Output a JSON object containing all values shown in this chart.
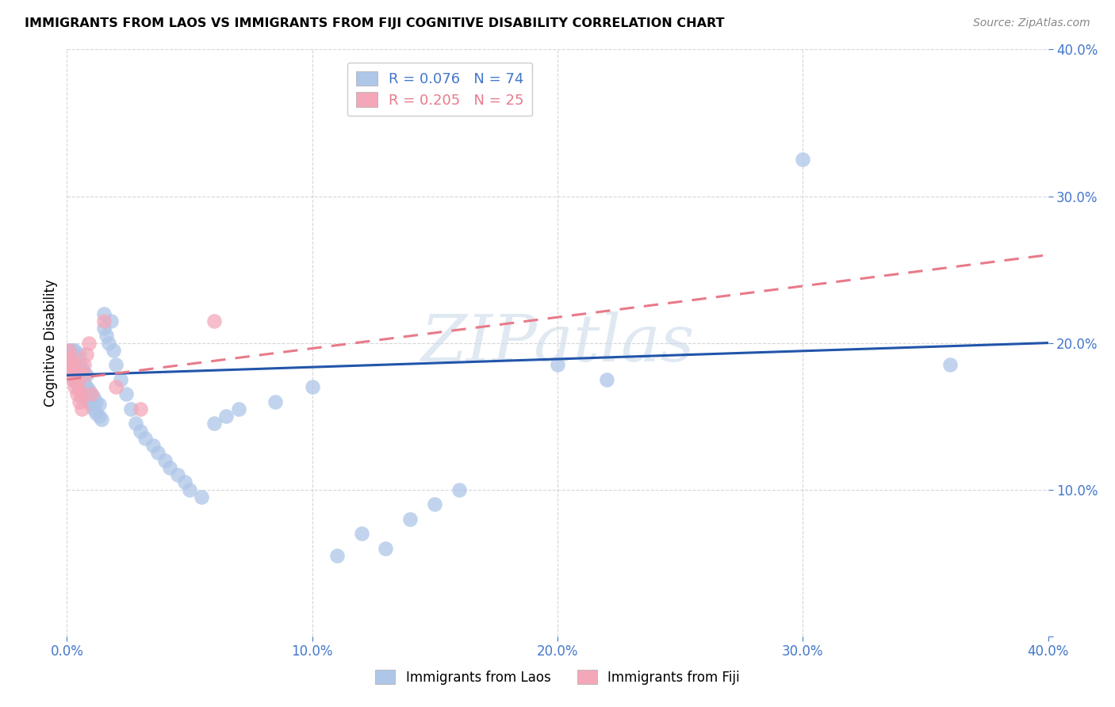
{
  "title": "IMMIGRANTS FROM LAOS VS IMMIGRANTS FROM FIJI COGNITIVE DISABILITY CORRELATION CHART",
  "source": "Source: ZipAtlas.com",
  "ylabel": "Cognitive Disability",
  "xlim": [
    0.0,
    0.4
  ],
  "ylim": [
    0.0,
    0.4
  ],
  "xticks": [
    0.0,
    0.1,
    0.2,
    0.3,
    0.4
  ],
  "yticks": [
    0.0,
    0.1,
    0.2,
    0.3,
    0.4
  ],
  "xticklabels": [
    "0.0%",
    "10.0%",
    "20.0%",
    "30.0%",
    "40.0%"
  ],
  "yticklabels": [
    "",
    "10.0%",
    "20.0%",
    "30.0%",
    "40.0%"
  ],
  "laos_R": 0.076,
  "laos_N": 74,
  "fiji_R": 0.205,
  "fiji_N": 25,
  "laos_color": "#aec6e8",
  "fiji_color": "#f4a7b9",
  "laos_line_color": "#2255aa",
  "fiji_line_color": "#e87a8a",
  "watermark": "ZIPatlas",
  "laos_line_x0": 0.0,
  "laos_line_y0": 0.178,
  "laos_line_x1": 0.4,
  "laos_line_y1": 0.2,
  "fiji_line_x0": 0.0,
  "fiji_line_y0": 0.175,
  "fiji_line_x1": 0.4,
  "fiji_line_y1": 0.26,
  "laos_points_x": [
    0.001,
    0.001,
    0.001,
    0.002,
    0.002,
    0.002,
    0.002,
    0.003,
    0.003,
    0.003,
    0.003,
    0.004,
    0.004,
    0.004,
    0.005,
    0.005,
    0.005,
    0.005,
    0.006,
    0.006,
    0.006,
    0.007,
    0.007,
    0.007,
    0.008,
    0.008,
    0.008,
    0.009,
    0.009,
    0.01,
    0.01,
    0.011,
    0.011,
    0.012,
    0.012,
    0.013,
    0.013,
    0.014,
    0.015,
    0.015,
    0.016,
    0.017,
    0.018,
    0.019,
    0.02,
    0.022,
    0.024,
    0.026,
    0.028,
    0.03,
    0.032,
    0.035,
    0.037,
    0.04,
    0.042,
    0.045,
    0.048,
    0.05,
    0.055,
    0.06,
    0.065,
    0.07,
    0.085,
    0.1,
    0.11,
    0.12,
    0.13,
    0.14,
    0.15,
    0.16,
    0.2,
    0.22,
    0.3,
    0.36
  ],
  "laos_points_y": [
    0.19,
    0.185,
    0.195,
    0.18,
    0.185,
    0.19,
    0.195,
    0.175,
    0.182,
    0.188,
    0.195,
    0.175,
    0.182,
    0.19,
    0.17,
    0.178,
    0.185,
    0.192,
    0.168,
    0.175,
    0.183,
    0.165,
    0.172,
    0.18,
    0.162,
    0.17,
    0.178,
    0.16,
    0.168,
    0.158,
    0.165,
    0.155,
    0.163,
    0.152,
    0.16,
    0.15,
    0.158,
    0.148,
    0.22,
    0.21,
    0.205,
    0.2,
    0.215,
    0.195,
    0.185,
    0.175,
    0.165,
    0.155,
    0.145,
    0.14,
    0.135,
    0.13,
    0.125,
    0.12,
    0.115,
    0.11,
    0.105,
    0.1,
    0.095,
    0.145,
    0.15,
    0.155,
    0.16,
    0.17,
    0.055,
    0.07,
    0.06,
    0.08,
    0.09,
    0.1,
    0.185,
    0.175,
    0.325,
    0.185
  ],
  "fiji_points_x": [
    0.001,
    0.001,
    0.001,
    0.002,
    0.002,
    0.002,
    0.002,
    0.003,
    0.003,
    0.003,
    0.004,
    0.004,
    0.005,
    0.005,
    0.006,
    0.006,
    0.007,
    0.007,
    0.008,
    0.009,
    0.01,
    0.015,
    0.02,
    0.03,
    0.06
  ],
  "fiji_points_y": [
    0.188,
    0.182,
    0.195,
    0.175,
    0.183,
    0.19,
    0.178,
    0.17,
    0.178,
    0.185,
    0.165,
    0.172,
    0.16,
    0.168,
    0.155,
    0.163,
    0.178,
    0.185,
    0.192,
    0.2,
    0.165,
    0.215,
    0.17,
    0.155,
    0.215
  ]
}
